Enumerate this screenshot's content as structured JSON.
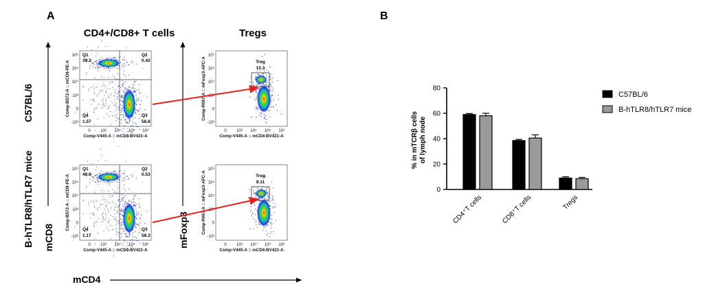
{
  "panel_a": {
    "letter": "A",
    "col1_title": "CD4+/CD8+ T cells",
    "col2_title": "Tregs",
    "row1_label": "C57BL/6",
    "row2_label": "B-hTLR8/hTLR7 mice",
    "y_axis_main": "mCD8",
    "y_axis_second": "mFoxp3",
    "x_axis_main": "mCD4",
    "dot_plots": {
      "cd_x_label": "Comp-V445-A :: mCD4-BV421-A",
      "cd_y_label": "Comp-B572-A :: mCD8-PE-A",
      "treg_x_label": "Comp-V445-A :: mCD4-BV421-A",
      "treg_y_label": "Comp-R667-A :: mFoxp3-APC-A",
      "x_ticks": [
        "0",
        "10³",
        "10⁴",
        "10⁵",
        "10⁶"
      ],
      "y_ticks_cd": [
        "10⁶",
        "10⁵",
        "10⁴",
        "10³",
        "0",
        "-10³"
      ],
      "y_ticks_treg": [
        "10⁶",
        "10⁵",
        "10⁴",
        "10³",
        "0",
        "-10³"
      ],
      "gate_name": "Treg",
      "row1": {
        "q1_name": "Q1",
        "q1": "39.2",
        "q2_name": "Q2",
        "q2": "0.42",
        "q3_name": "Q3",
        "q3": "58.8",
        "q4_name": "Q4",
        "q4": "1.57",
        "treg": "10.3"
      },
      "row2": {
        "q1_name": "Q1",
        "q1": "40.0",
        "q2_name": "Q2",
        "q2": "0.53",
        "q3_name": "Q3",
        "q3": "58.3",
        "q4_name": "Q4",
        "q4": "1.17",
        "treg": "8.11"
      }
    },
    "arrow_color": "#e8201a"
  },
  "panel_b": {
    "letter": "B",
    "colors": {
      "series1": "#000000",
      "series2": "#9a9a9a"
    }
  },
  "chart_data": {
    "type": "bar",
    "title": "",
    "xlabel": "",
    "ylabel": "% in mTCRβ cells of lymph node",
    "ylabel_lines": [
      "% in mTCRβ cells",
      "of lymph node"
    ],
    "categories": [
      "CD4⁺T cells",
      "CD8⁺T cells",
      "Tregs"
    ],
    "series": [
      {
        "name": "C57BL/6",
        "values": [
          59,
          38.5,
          9
        ],
        "errors": [
          0.8,
          0.9,
          1.0
        ]
      },
      {
        "name": "B-hTLR8/hTLR7 mice",
        "values": [
          58,
          40.5,
          8.5
        ],
        "errors": [
          2.0,
          2.5,
          1.0
        ]
      }
    ],
    "yticks": [
      "0",
      "20",
      "40",
      "60",
      "80"
    ],
    "ylim": [
      0,
      80
    ],
    "grid": false,
    "legend": "right"
  }
}
